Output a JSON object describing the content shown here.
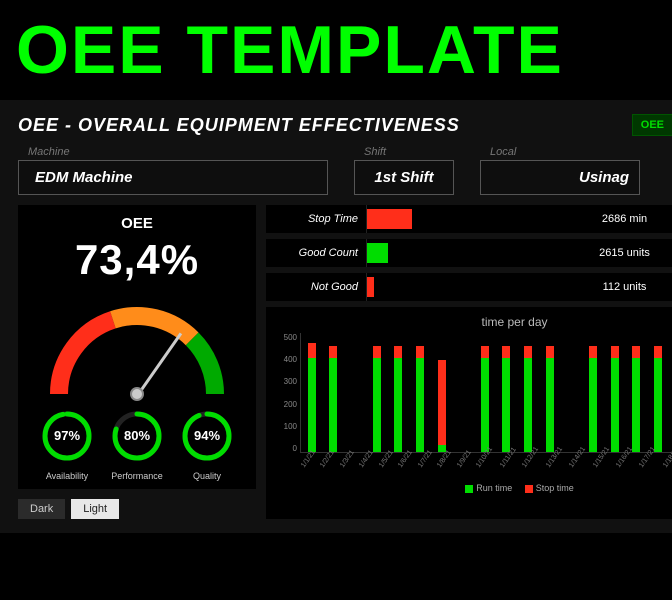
{
  "colors": {
    "green": "#00dd00",
    "brightGreen": "#00ff00",
    "orange": "#ff8c1a",
    "red": "#ff2e1a",
    "grey": "#cccccc",
    "bgBlack": "#000000",
    "panel": "#111111"
  },
  "banner": {
    "title": "OEE TEMPLATE"
  },
  "header": {
    "title": "OEE - OVERALL EQUIPMENT EFFECTIVENESS",
    "button": "OEE"
  },
  "filters": {
    "machine": {
      "label": "Machine",
      "value": "EDM Machine"
    },
    "shift": {
      "label": "Shift",
      "value": "1st Shift"
    },
    "local": {
      "label": "Local",
      "value": "Usinag"
    }
  },
  "oee": {
    "title": "OEE",
    "value": "73,4%",
    "gauge": {
      "segments": [
        {
          "start": -90,
          "end": -18,
          "color": "#ff2e1a"
        },
        {
          "start": -18,
          "end": 45,
          "color": "#ff8c1a"
        },
        {
          "start": 45,
          "end": 90,
          "color": "#00aa00"
        }
      ],
      "needle_angle_deg": 35,
      "stroke_width": 18
    },
    "sub": [
      {
        "label": "Availability",
        "pct": 97,
        "text": "97%",
        "color": "#00dd00"
      },
      {
        "label": "Performance",
        "pct": 80,
        "text": "80%",
        "color": "#00dd00"
      },
      {
        "label": "Quality",
        "pct": 94,
        "text": "94%",
        "color": "#00dd00"
      }
    ]
  },
  "bars": [
    {
      "name": "Stop Time",
      "value": "2686 min",
      "fill_pct": 38,
      "color": "#ff2e1a"
    },
    {
      "name": "Good Count",
      "value": "2615 units",
      "fill_pct": 18,
      "color": "#00dd00"
    },
    {
      "name": "Not Good",
      "value": "112 units",
      "fill_pct": 6,
      "color": "#ff2e1a"
    }
  ],
  "chart": {
    "title": "time per day",
    "ymax": 500,
    "yticks": [
      500,
      400,
      300,
      200,
      100,
      0
    ],
    "run_color": "#00dd00",
    "stop_color": "#ff2e1a",
    "legend": {
      "run": "Run time",
      "stop": "Stop time"
    },
    "days": [
      {
        "label": "1/1/21",
        "run": 400,
        "stop": 60
      },
      {
        "label": "1/2/21",
        "run": 400,
        "stop": 50
      },
      {
        "label": "1/3/21",
        "run": 0,
        "stop": 0
      },
      {
        "label": "1/4/21",
        "run": 400,
        "stop": 50
      },
      {
        "label": "1/5/21",
        "run": 400,
        "stop": 50
      },
      {
        "label": "1/6/21",
        "run": 400,
        "stop": 50
      },
      {
        "label": "1/7/21",
        "run": 30,
        "stop": 360
      },
      {
        "label": "1/8/21",
        "run": 0,
        "stop": 0
      },
      {
        "label": "1/9/21",
        "run": 400,
        "stop": 50
      },
      {
        "label": "1/10/21",
        "run": 400,
        "stop": 50
      },
      {
        "label": "1/11/21",
        "run": 400,
        "stop": 50
      },
      {
        "label": "1/12/21",
        "run": 400,
        "stop": 50
      },
      {
        "label": "1/13/21",
        "run": 0,
        "stop": 0
      },
      {
        "label": "1/14/21",
        "run": 400,
        "stop": 50
      },
      {
        "label": "1/15/21",
        "run": 400,
        "stop": 50
      },
      {
        "label": "1/16/21",
        "run": 400,
        "stop": 50
      },
      {
        "label": "1/17/21",
        "run": 400,
        "stop": 50
      },
      {
        "label": "1/18/21",
        "run": 0,
        "stop": 0
      },
      {
        "label": "1/19/21",
        "run": 400,
        "stop": 50
      },
      {
        "label": "1/20/21",
        "run": 400,
        "stop": 50
      },
      {
        "label": "1/21/21",
        "run": 400,
        "stop": 50
      }
    ]
  },
  "theme": {
    "dark": "Dark",
    "light": "Light"
  }
}
